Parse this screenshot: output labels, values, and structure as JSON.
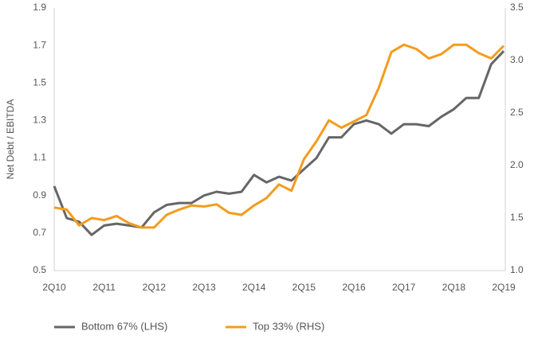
{
  "chart_data": {
    "type": "line",
    "y_label": "Net Debt / EBITDA",
    "categories": [
      "2Q10",
      null,
      null,
      null,
      "2Q11",
      null,
      null,
      null,
      "2Q12",
      null,
      null,
      null,
      "2Q13",
      null,
      null,
      null,
      "2Q14",
      null,
      null,
      null,
      "2Q15",
      null,
      null,
      null,
      "2Q16",
      null,
      null,
      null,
      "2Q17",
      null,
      null,
      null,
      "2Q18",
      null,
      null,
      null,
      "2Q19"
    ],
    "series": [
      {
        "name": "Bottom 67% (LHS)",
        "color": "#666666",
        "values": [
          0.95,
          0.78,
          0.76,
          0.69,
          0.74,
          0.75,
          0.74,
          0.73,
          0.81,
          0.85,
          0.86,
          0.86,
          0.9,
          0.92,
          0.91,
          0.92,
          1.01,
          0.97,
          1.0,
          0.98,
          1.04,
          1.1,
          1.21,
          1.21,
          1.28,
          1.3,
          1.28,
          1.23,
          1.28,
          1.28,
          1.27,
          1.32,
          1.36,
          1.42,
          1.42,
          1.6,
          1.67
        ]
      },
      {
        "name": "Top 33% (RHS)",
        "color": "#f39c1d",
        "axis": "y2",
        "values": [
          1.6,
          1.58,
          1.43,
          1.5,
          1.48,
          1.52,
          1.45,
          1.41,
          1.41,
          1.53,
          1.58,
          1.62,
          1.61,
          1.63,
          1.55,
          1.53,
          1.62,
          1.69,
          1.82,
          1.76,
          2.06,
          2.23,
          2.43,
          2.36,
          2.42,
          2.48,
          2.74,
          3.08,
          3.15,
          3.11,
          3.02,
          3.06,
          3.15,
          3.15,
          3.07,
          3.02,
          3.14
        ]
      }
    ],
    "ylim": [
      0.5,
      1.9
    ],
    "yticks": [
      0.5,
      0.7,
      0.9,
      1.1,
      1.3,
      1.5,
      1.7,
      1.9
    ],
    "y2lim": [
      1.0,
      3.5
    ],
    "y2ticks": [
      {
        "value": 1,
        "label": "1.0"
      },
      1.5,
      {
        "value": 2,
        "label": "2.0"
      },
      2.5,
      {
        "value": 3,
        "label": "3.0"
      },
      3.5
    ],
    "grid": false,
    "legend": "bottom"
  }
}
